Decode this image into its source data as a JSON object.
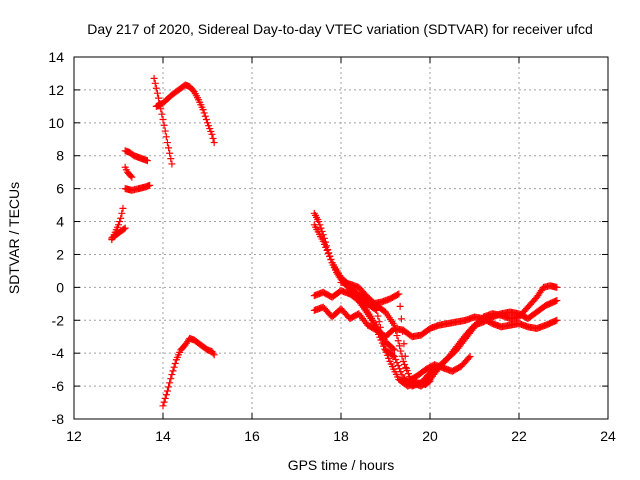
{
  "chart_data": {
    "type": "scatter",
    "title": "Day 217 of 2020, Sidereal Day-to-day VTEC variation (SDTVAR) for receiver ufcd",
    "xlabel": "GPS time / hours",
    "ylabel": "SDTVAR / TECUs",
    "xlim": [
      12,
      24
    ],
    "ylim": [
      -8,
      14
    ],
    "xticks": [
      12,
      14,
      16,
      18,
      20,
      22,
      24
    ],
    "yticks": [
      -8,
      -6,
      -4,
      -2,
      0,
      2,
      4,
      6,
      8,
      10,
      12,
      14
    ],
    "grid": true,
    "marker": "plus",
    "color": "#ff0000",
    "series": [
      {
        "name": "arc-1",
        "x": [
          12.85,
          12.9,
          12.95,
          13.0,
          13.05,
          13.1
        ],
        "y": [
          2.9,
          3.2,
          3.5,
          3.8,
          4.2,
          4.8
        ]
      },
      {
        "name": "arc-2",
        "x": [
          12.85,
          12.95,
          13.05,
          13.15
        ],
        "y": [
          3.0,
          3.2,
          3.4,
          3.6
        ]
      },
      {
        "name": "arc-3",
        "x": [
          13.15,
          13.25,
          13.35,
          13.45,
          13.55,
          13.65
        ],
        "y": [
          8.3,
          8.2,
          8.0,
          7.9,
          7.8,
          7.7
        ]
      },
      {
        "name": "arc-4",
        "x": [
          13.15,
          13.2,
          13.3
        ],
        "y": [
          7.3,
          7.0,
          6.7
        ]
      },
      {
        "name": "arc-5",
        "x": [
          13.15,
          13.3,
          13.45,
          13.6,
          13.7
        ],
        "y": [
          6.0,
          5.9,
          6.0,
          6.1,
          6.2
        ]
      },
      {
        "name": "arc-6",
        "x": [
          13.8,
          13.9,
          14.0,
          14.1,
          14.2
        ],
        "y": [
          12.7,
          11.5,
          10.2,
          8.8,
          7.5
        ]
      },
      {
        "name": "arc-7",
        "x": [
          13.85,
          14.0,
          14.2,
          14.4,
          14.5,
          14.6,
          14.7,
          14.8,
          14.9,
          15.0,
          15.1,
          15.15
        ],
        "y": [
          11.0,
          11.2,
          11.7,
          12.1,
          12.3,
          12.2,
          11.9,
          11.4,
          10.8,
          10.0,
          9.3,
          8.8
        ]
      },
      {
        "name": "arc-8",
        "x": [
          14.0,
          14.1,
          14.2,
          14.3,
          14.4,
          14.5,
          14.6,
          14.7,
          14.8,
          14.9,
          15.0,
          15.1,
          15.15
        ],
        "y": [
          -7.2,
          -6.3,
          -5.3,
          -4.4,
          -3.8,
          -3.5,
          -3.1,
          -3.2,
          -3.4,
          -3.6,
          -3.8,
          -3.9,
          -4.1
        ]
      },
      {
        "name": "arc-9",
        "x": [
          17.4,
          17.5,
          17.6,
          17.7,
          17.8,
          17.9,
          18.0,
          18.1,
          18.2,
          18.3,
          18.5,
          18.7,
          18.9,
          19.1,
          19.3,
          19.5,
          19.7,
          19.9,
          20.0
        ],
        "y": [
          4.5,
          4.0,
          3.2,
          2.3,
          1.5,
          0.9,
          0.5,
          0.2,
          -0.1,
          -0.5,
          -1.2,
          -2.0,
          -3.2,
          -4.5,
          -5.6,
          -6.0,
          -5.8,
          -5.9,
          -5.7
        ]
      },
      {
        "name": "arc-10",
        "x": [
          17.4,
          17.6,
          17.8,
          18.0,
          18.2,
          18.4,
          18.6,
          18.8,
          19.0,
          19.2
        ],
        "y": [
          3.8,
          2.8,
          1.5,
          0.6,
          0.1,
          -0.6,
          -1.5,
          -2.4,
          -3.3,
          -3.8
        ]
      },
      {
        "name": "arc-11",
        "x": [
          17.4,
          17.6,
          17.8,
          18.0,
          18.2,
          18.4,
          18.6,
          18.8,
          19.0,
          19.2,
          19.4,
          19.6,
          19.8,
          20.0,
          20.2,
          20.4,
          20.6,
          20.8,
          21.0,
          21.2,
          21.4,
          21.6,
          21.8,
          22.0,
          22.2,
          22.4,
          22.6,
          22.85
        ],
        "y": [
          -1.4,
          -1.2,
          -1.8,
          -1.3,
          -1.9,
          -1.6,
          -2.3,
          -2.6,
          -3.0,
          -2.5,
          -2.6,
          -3.0,
          -2.9,
          -2.5,
          -2.3,
          -2.2,
          -2.1,
          -2.0,
          -1.8,
          -1.9,
          -2.2,
          -2.4,
          -2.3,
          -2.2,
          -2.4,
          -2.5,
          -2.3,
          -2.0
        ]
      },
      {
        "name": "arc-12",
        "x": [
          17.4,
          17.6,
          17.8,
          18.0,
          18.2,
          18.4,
          18.6,
          18.8,
          19.0,
          19.2,
          19.4,
          19.6,
          19.8,
          20.0,
          20.2,
          20.4,
          20.6,
          20.8,
          21.0,
          21.2,
          21.4,
          21.6,
          21.8,
          22.0,
          22.2,
          22.4,
          22.6,
          22.85
        ],
        "y": [
          -0.5,
          -0.3,
          -0.6,
          -0.2,
          -0.4,
          -0.8,
          -1.0,
          -1.4,
          -3.8,
          -4.2,
          -5.5,
          -6.0,
          -5.8,
          -5.2,
          -4.8,
          -4.3,
          -3.6,
          -2.9,
          -2.3,
          -2.1,
          -1.8,
          -1.6,
          -1.5,
          -1.6,
          -1.9,
          -1.5,
          -1.1,
          -0.8
        ]
      },
      {
        "name": "arc-13",
        "x": [
          18.0,
          18.2,
          18.4,
          18.6,
          18.8,
          19.0,
          19.2,
          19.4,
          19.6,
          19.8,
          20.0,
          20.2,
          20.4,
          20.6,
          20.8,
          21.0,
          21.2,
          21.4,
          21.6,
          21.8,
          22.0,
          22.2,
          22.4,
          22.55,
          22.7,
          22.85
        ],
        "y": [
          0.3,
          0.2,
          0.0,
          -0.6,
          -1.1,
          -1.5,
          -2.3,
          -4.5,
          -5.8,
          -6.0,
          -5.6,
          -4.9,
          -4.3,
          -3.8,
          -3.1,
          -2.4,
          -1.8,
          -1.6,
          -1.7,
          -1.9,
          -1.8,
          -1.2,
          -0.6,
          0.0,
          0.1,
          0.0
        ]
      },
      {
        "name": "arc-14",
        "x": [
          18.3,
          18.5,
          18.7,
          18.9,
          19.1,
          19.3,
          19.5,
          19.7,
          19.9,
          20.1,
          20.3,
          20.5,
          20.7,
          20.9
        ],
        "y": [
          -0.3,
          -0.6,
          -1.0,
          -0.9,
          -0.7,
          -0.4,
          -5.7,
          -5.4,
          -5.0,
          -4.7,
          -4.9,
          -5.1,
          -4.8,
          -4.2
        ]
      }
    ]
  }
}
